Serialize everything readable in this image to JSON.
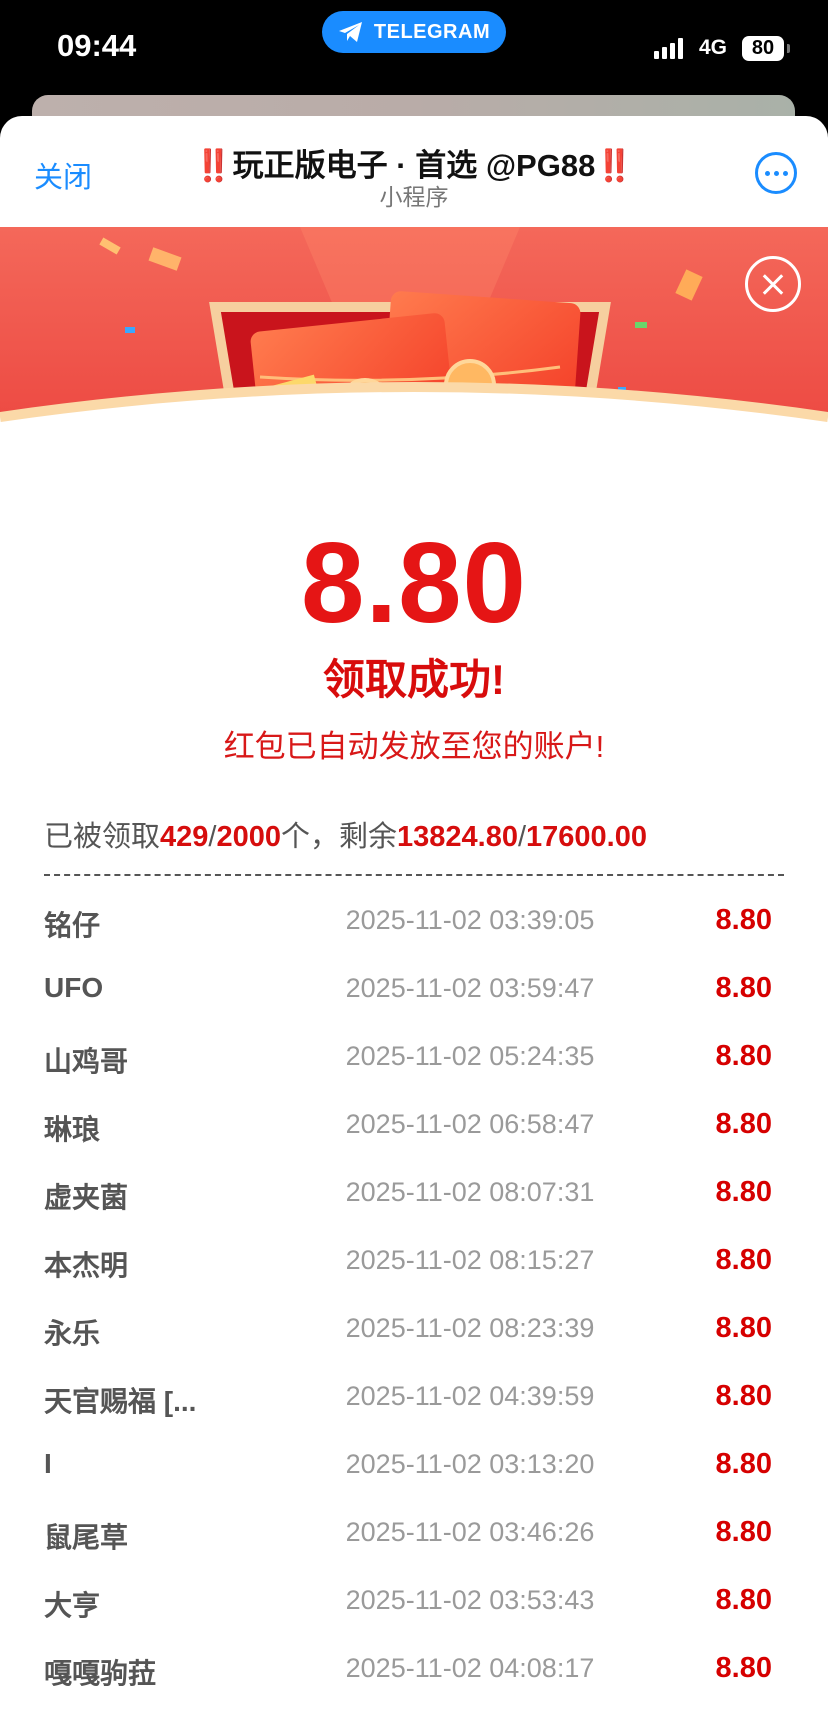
{
  "status_bar": {
    "time": "09:44",
    "pill_label": "TELEGRAM",
    "network": "4G",
    "battery": "80"
  },
  "header": {
    "close_label": "关闭",
    "title_bang": "‼️",
    "title": "玩正版电子 · 首选 @PG88",
    "subtitle": "小程序",
    "more_icon": "more-icon"
  },
  "colors": {
    "accent": "#1a8cff",
    "red": "#e51515"
  },
  "result": {
    "amount": "8.80",
    "success": "领取成功!",
    "note": "红包已自动发放至您的账户!"
  },
  "stats": {
    "prefix": "已被领取",
    "claimed": "429",
    "sep1": "/",
    "total": "2000",
    "mid": "个，剩余",
    "remaining": "13824.80",
    "sep2": "/",
    "total_amount": "17600.00"
  },
  "records": [
    {
      "name": "铭仔",
      "time": "2025-11-02 03:39:05",
      "amount": "8.80"
    },
    {
      "name": "UFO",
      "time": "2025-11-02 03:59:47",
      "amount": "8.80"
    },
    {
      "name": "山鸡哥",
      "time": "2025-11-02 05:24:35",
      "amount": "8.80"
    },
    {
      "name": "琳琅",
      "time": "2025-11-02 06:58:47",
      "amount": "8.80"
    },
    {
      "name": "虚夹菌",
      "time": "2025-11-02 08:07:31",
      "amount": "8.80"
    },
    {
      "name": "本杰明",
      "time": "2025-11-02 08:15:27",
      "amount": "8.80"
    },
    {
      "name": "永乐",
      "time": "2025-11-02 08:23:39",
      "amount": "8.80"
    },
    {
      "name": "天官赐福 [...",
      "time": "2025-11-02 04:39:59",
      "amount": "8.80"
    },
    {
      "name": "I",
      "time": "2025-11-02 03:13:20",
      "amount": "8.80"
    },
    {
      "name": "鼠尾草",
      "time": "2025-11-02 03:46:26",
      "amount": "8.80"
    },
    {
      "name": "大亨",
      "time": "2025-11-02 03:53:43",
      "amount": "8.80"
    },
    {
      "name": "嘎嘎驹菈",
      "time": "2025-11-02 04:08:17",
      "amount": "8.80"
    }
  ]
}
